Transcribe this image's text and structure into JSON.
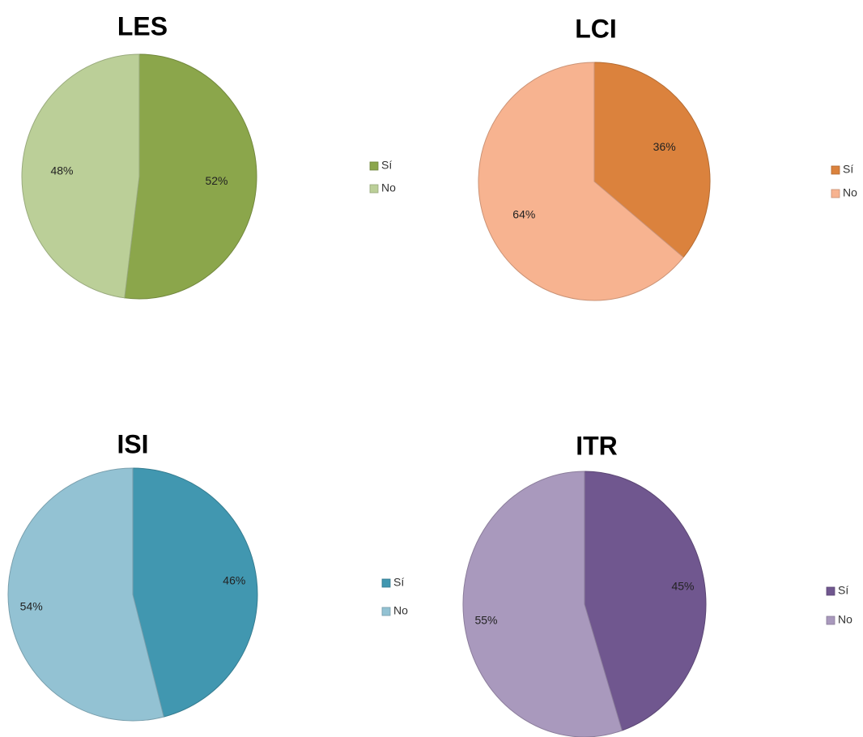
{
  "chart_data": [
    {
      "type": "pie",
      "title": "LES",
      "legend_position": "right",
      "slices": [
        {
          "label": "Sí",
          "value": 52,
          "color": "#8ba64b",
          "value_label": "52%"
        },
        {
          "label": "No",
          "value": 48,
          "color": "#bbcf98",
          "value_label": "48%"
        }
      ]
    },
    {
      "type": "pie",
      "title": "LCI",
      "legend_position": "right",
      "slices": [
        {
          "label": "Sí",
          "value": 36,
          "color": "#db823d",
          "value_label": "36%"
        },
        {
          "label": "No",
          "value": 64,
          "color": "#f7b390",
          "value_label": "64%"
        }
      ]
    },
    {
      "type": "pie",
      "title": "ISI",
      "legend_position": "right",
      "slices": [
        {
          "label": "Sí",
          "value": 46,
          "color": "#4197b0",
          "value_label": "46%"
        },
        {
          "label": "No",
          "value": 54,
          "color": "#93c2d3",
          "value_label": "54%"
        }
      ]
    },
    {
      "type": "pie",
      "title": "ITR",
      "legend_position": "right",
      "slices": [
        {
          "label": "Sí",
          "value": 45,
          "color": "#70578f",
          "value_label": "45%"
        },
        {
          "label": "No",
          "value": 55,
          "color": "#a999bd",
          "value_label": "55%"
        }
      ]
    }
  ]
}
